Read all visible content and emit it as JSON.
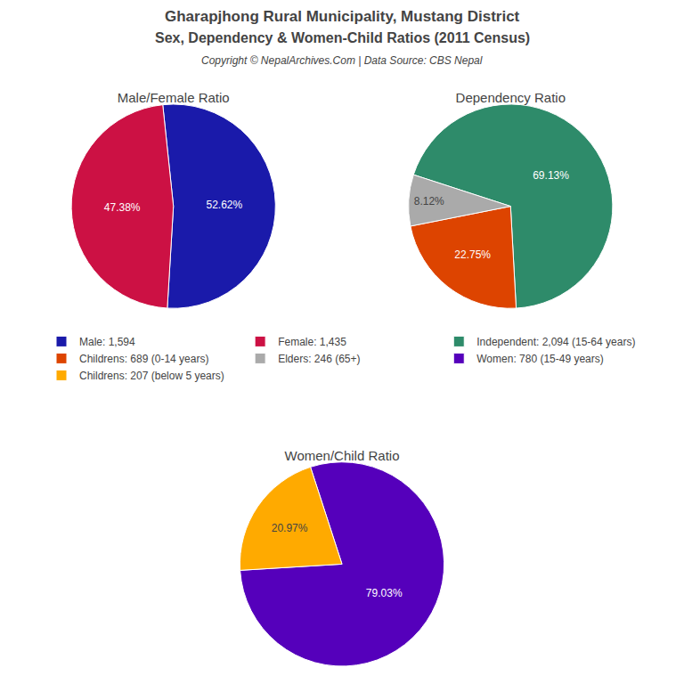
{
  "title": "Gharapjhong Rural Municipality, Mustang District",
  "subtitle": "Sex, Dependency & Women-Child Ratios (2011 Census)",
  "annotations": [
    "Copyright © NepalArchives.Com | Data Source: CBS Nepal"
  ],
  "legend": "center",
  "chart_data": [
    {
      "type": "pie",
      "title": "Male/Female Ratio",
      "categories": [
        "Male: 1,594",
        "Female: 1,435"
      ],
      "values": [
        52.62,
        47.38
      ],
      "value_labels": [
        "52.62%",
        "47.38%"
      ],
      "colors": [
        "#1a1aaa",
        "#cc1144"
      ],
      "data_labels": true
    },
    {
      "type": "pie",
      "title": "Dependency Ratio",
      "categories": [
        "Independent: 2,094 (15-64 years)",
        "Childrens: 689 (0-14 years)",
        "Elders: 246 (65+)"
      ],
      "values": [
        69.13,
        22.75,
        8.12
      ],
      "value_labels": [
        "69.13%",
        "22.75%",
        "8.12%"
      ],
      "colors": [
        "#2e8b6a",
        "#dd4400",
        "#aaaaaa"
      ],
      "data_labels": true
    },
    {
      "type": "pie",
      "title": "Women/Child Ratio",
      "categories": [
        "Women: 780 (15-49 years)",
        "Childrens: 207 (below 5 years)"
      ],
      "values": [
        79.03,
        20.97
      ],
      "value_labels": [
        "79.03%",
        "20.97%"
      ],
      "colors": [
        "#5500bb",
        "#ffaa00"
      ],
      "data_labels": true
    }
  ]
}
